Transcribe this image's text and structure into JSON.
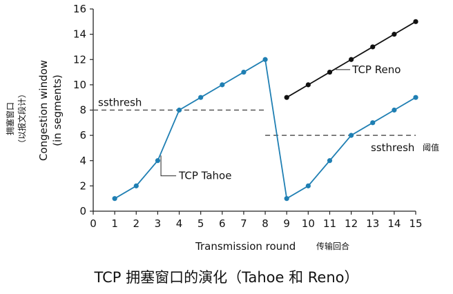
{
  "chart_data": {
    "type": "line",
    "caption": "TCP 拥塞窗口的演化（Tahoe 和 Reno）",
    "xlabel": "Transmission round",
    "xlabel_cn": "传输回合",
    "ylabel_lines": [
      "Congestion window",
      "(in segments)"
    ],
    "ylabel_cn_lines": [
      "拥塞窗口",
      "（以报文段计）"
    ],
    "xlim": [
      0,
      15
    ],
    "ylim": [
      0,
      16
    ],
    "xticks": [
      0,
      1,
      2,
      3,
      4,
      5,
      6,
      7,
      8,
      9,
      10,
      11,
      12,
      13,
      14,
      15
    ],
    "yticks": [
      0,
      2,
      4,
      6,
      8,
      10,
      12,
      14,
      16
    ],
    "grid": false,
    "series": [
      {
        "name": "TCP Tahoe",
        "color": "#1f7fb3",
        "x": [
          1,
          2,
          3,
          4,
          5,
          6,
          7,
          8,
          9,
          10,
          11,
          12,
          13,
          14,
          15
        ],
        "y": [
          1,
          2,
          4,
          8,
          9,
          10,
          11,
          12,
          1,
          2,
          4,
          6,
          7,
          8,
          9
        ]
      },
      {
        "name": "TCP Reno",
        "color": "#111111",
        "x": [
          9,
          10,
          11,
          12,
          13,
          14,
          15
        ],
        "y": [
          9,
          10,
          11,
          12,
          13,
          14,
          15
        ]
      }
    ],
    "thresholds": [
      {
        "label": "ssthresh",
        "label_cn": "",
        "value": 8,
        "x_range": [
          0,
          8
        ]
      },
      {
        "label": "ssthresh",
        "label_cn": "阈值",
        "value": 6,
        "x_range": [
          8,
          15
        ]
      }
    ]
  }
}
